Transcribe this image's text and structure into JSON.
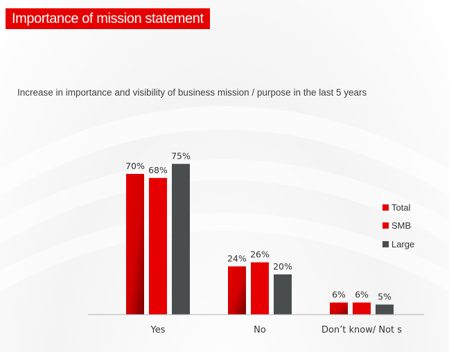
{
  "header": {
    "title": "Importance of mission statement"
  },
  "colors": {
    "total": "#e60000",
    "total_dark": "#8a0000",
    "smb": "#e60000",
    "large": "#4a4d4e",
    "axis": "#b0b0b0",
    "text": "#333333"
  },
  "chart_data": {
    "type": "bar",
    "title": "",
    "subtitle": "Increase in importance and visibility of business mission / purpose in the last 5 years",
    "xlabel": "",
    "ylabel": "",
    "categories": [
      "Yes",
      "No",
      "Don’t know/ Not s"
    ],
    "series": [
      {
        "name": "Total",
        "values": [
          70,
          24,
          6
        ]
      },
      {
        "name": "SMB",
        "values": [
          68,
          26,
          6
        ]
      },
      {
        "name": "Large",
        "values": [
          75,
          20,
          5
        ]
      }
    ],
    "value_suffix": "%",
    "ylim": [
      0,
      100
    ],
    "legend": "right",
    "grid": false
  }
}
